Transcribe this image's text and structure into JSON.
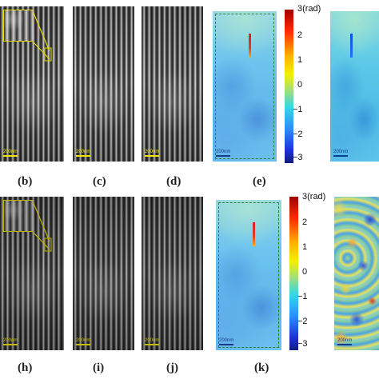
{
  "row1": {
    "panel_labels": [
      "(b)",
      "(c)",
      "(d)",
      "(e)"
    ],
    "scale_labels": [
      "200nm",
      "200nm",
      "200nm",
      "200nm",
      "200nm"
    ],
    "colorbar": {
      "ticks": [
        "3(rad)",
        "2",
        "1",
        "0",
        "−1",
        "−2",
        "−3"
      ]
    }
  },
  "row2": {
    "panel_labels": [
      "(h)",
      "(i)",
      "(j)",
      "(k)"
    ],
    "scale_labels": [
      "200nm",
      "200nm",
      "200nm",
      "200nm",
      "200nm"
    ],
    "colorbar": {
      "ticks": [
        "3(rad)",
        "2",
        "1",
        "0",
        "−1",
        "−2",
        "−3"
      ]
    }
  },
  "colors": {
    "scale_yellow": "#f2e600",
    "inset_border": "#e6dd00",
    "marker_red": "#d8202a",
    "marker_blue": "#1c4fd8"
  }
}
